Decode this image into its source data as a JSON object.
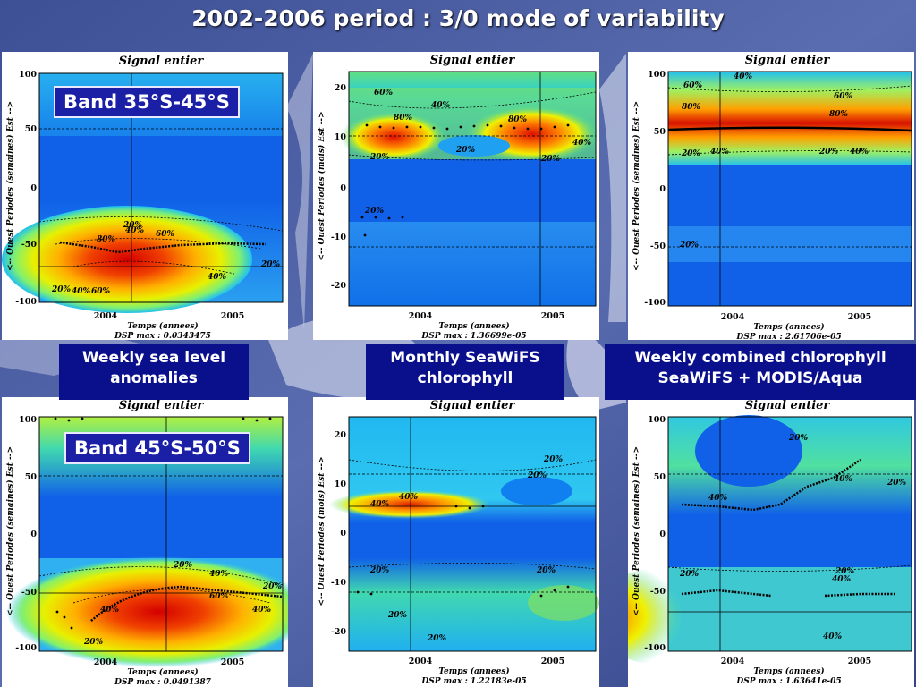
{
  "title": "2002-2006 period : 3/0 mode of variability",
  "labels": {
    "band1": "Band 35°S-45°S",
    "band2": "Band 45°S-50°S"
  },
  "captions": {
    "c1": "Weekly sea level anomalies",
    "c2": "Monthly SeaWiFS chlorophyll",
    "c3": "Weekly combined chlorophyll SeaWiFS + MODIS/Aqua"
  },
  "panels": [
    {
      "title": "Signal entier",
      "ylabel": "<-- Ouest    Periodes (semaines)    Est -->",
      "xlabel": "Temps (annees)",
      "dsp": "DSP max :  0.0343475",
      "yticks": [
        "100",
        "50",
        "0",
        "-50",
        "-100"
      ],
      "xticks": [
        "2004",
        "2005"
      ],
      "contour_labels": [
        "20%",
        "40%",
        "60%",
        "80%",
        "60%",
        "40%",
        "20%",
        "20%",
        "40%",
        "60%",
        "80%",
        "40%",
        "20%"
      ]
    },
    {
      "title": "Signal entier",
      "ylabel": "<-- Ouest    Periodes (mois)    Est -->",
      "xlabel": "Temps (annees)",
      "dsp": "DSP max : 1.36699e-05",
      "yticks": [
        "20",
        "10",
        "0",
        "-10",
        "-20"
      ],
      "xticks": [
        "2004",
        "2005"
      ],
      "contour_labels": [
        "60%",
        "40%",
        "80%",
        "80%",
        "40%",
        "20%",
        "20%",
        "20%",
        "20%"
      ]
    },
    {
      "title": "Signal entier",
      "ylabel": "<-- Ouest    Periodes (semaines)    Est -->",
      "xlabel": "Temps (annees)",
      "dsp": "DSP max :  2.61706e-05",
      "yticks": [
        "100",
        "50",
        "0",
        "-50",
        "-100"
      ],
      "xticks": [
        "2004",
        "2005"
      ],
      "contour_labels": [
        "40%",
        "60%",
        "60%",
        "80%",
        "80%",
        "20%",
        "40%",
        "40%",
        "20%",
        "20%"
      ]
    },
    {
      "title": "Signal entier",
      "ylabel": "<-- Ouest    Periodes (semaines)    Est -->",
      "xlabel": "Temps (annees)",
      "dsp": "DSP max :  0.0491387",
      "yticks": [
        "100",
        "50",
        "0",
        "-50",
        "-100"
      ],
      "xticks": [
        "2004",
        "2005"
      ],
      "contour_labels": [
        "20%",
        "40%",
        "20%",
        "40%",
        "60%",
        "40%",
        "20%"
      ]
    },
    {
      "title": "Signal entier",
      "ylabel": "<-- Ouest    Periodes (mois)    Est -->",
      "xlabel": "Temps (annees)",
      "dsp": "DSP max : 1.22183e-05",
      "yticks": [
        "20",
        "10",
        "0",
        "-10",
        "-20"
      ],
      "xticks": [
        "2004",
        "2005"
      ],
      "contour_labels": [
        "20%",
        "20%",
        "40%",
        "40%",
        "20%",
        "20%",
        "20%",
        "20%"
      ]
    },
    {
      "title": "Signal entier",
      "ylabel": "<-- Ouest    Periodes (semaines)    Est -->",
      "xlabel": "Temps (annees)",
      "dsp": "DSP max :  1.63641e-05",
      "yticks": [
        "100",
        "50",
        "0",
        "-50",
        "-100"
      ],
      "xticks": [
        "2004",
        "2005"
      ],
      "contour_labels": [
        "20%",
        "40%",
        "20%",
        "40%",
        "20%",
        "40%",
        "20%",
        "40%"
      ]
    }
  ]
}
